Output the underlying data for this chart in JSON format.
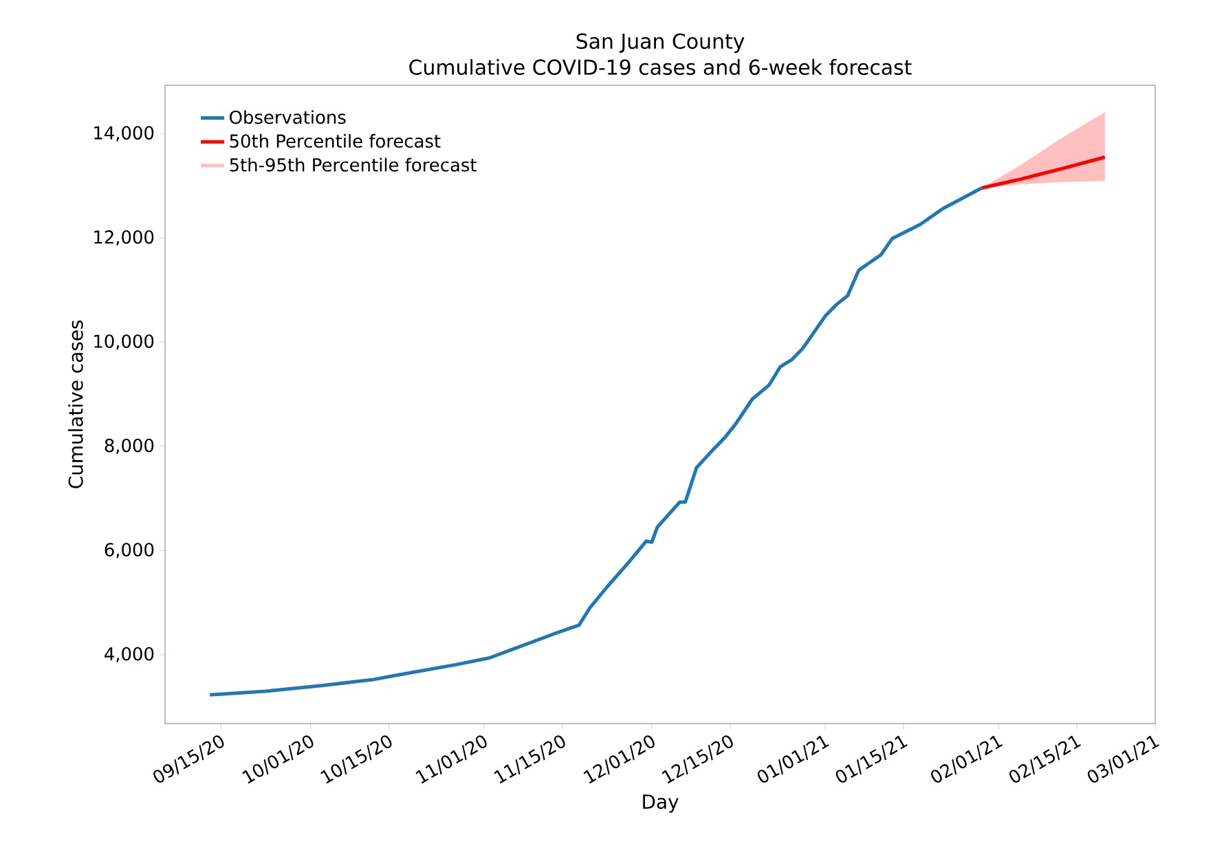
{
  "chart_data": {
    "type": "line",
    "title": "San Juan County",
    "subtitle": "Cumulative COVID-19 cases and 6-week forecast",
    "xlabel": "Day",
    "ylabel": "Cumulative cases",
    "xlim": [
      "2020-09-05",
      "2021-03-01"
    ],
    "ylim": [
      2680,
      14930
    ],
    "xticks": [
      {
        "value": "2020-09-15",
        "label": "09/15/20"
      },
      {
        "value": "2020-10-01",
        "label": "10/01/20"
      },
      {
        "value": "2020-10-15",
        "label": "10/15/20"
      },
      {
        "value": "2020-11-01",
        "label": "11/01/20"
      },
      {
        "value": "2020-11-15",
        "label": "11/15/20"
      },
      {
        "value": "2020-12-01",
        "label": "12/01/20"
      },
      {
        "value": "2020-12-15",
        "label": "12/15/20"
      },
      {
        "value": "2021-01-01",
        "label": "01/01/21"
      },
      {
        "value": "2021-01-15",
        "label": "01/15/21"
      },
      {
        "value": "2021-02-01",
        "label": "02/01/21"
      },
      {
        "value": "2021-02-15",
        "label": "02/15/21"
      },
      {
        "value": "2021-03-01",
        "label": "03/01/21"
      }
    ],
    "yticks": [
      {
        "value": 4000,
        "label": "4,000"
      },
      {
        "value": 6000,
        "label": "6,000"
      },
      {
        "value": 8000,
        "label": "8,000"
      },
      {
        "value": 10000,
        "label": "10,000"
      },
      {
        "value": 12000,
        "label": "12,000"
      },
      {
        "value": 14000,
        "label": "14,000"
      }
    ],
    "legend": "top left",
    "series": [
      {
        "name": "Observations",
        "color": "#1f77b4",
        "x": [
          "2020-09-13",
          "2020-09-23",
          "2020-10-03",
          "2020-10-12",
          "2020-10-16",
          "2020-10-27",
          "2020-11-02",
          "2020-11-07",
          "2020-11-14",
          "2020-11-18",
          "2020-11-20",
          "2020-11-23",
          "2020-11-27",
          "2020-11-30",
          "2020-12-01",
          "2020-12-02",
          "2020-12-06",
          "2020-12-07",
          "2020-12-09",
          "2020-12-12",
          "2020-12-14",
          "2020-12-16",
          "2020-12-19",
          "2020-12-22",
          "2020-12-24",
          "2020-12-26",
          "2020-12-28",
          "2021-01-01",
          "2021-01-03",
          "2021-01-05",
          "2021-01-07",
          "2021-01-11",
          "2021-01-13",
          "2021-01-18",
          "2021-01-22",
          "2021-01-29"
        ],
        "values": [
          3230,
          3300,
          3410,
          3520,
          3600,
          3810,
          3940,
          4140,
          4420,
          4570,
          4910,
          5300,
          5790,
          6180,
          6160,
          6450,
          6930,
          6930,
          7590,
          7940,
          8160,
          8430,
          8910,
          9180,
          9530,
          9660,
          9880,
          10500,
          10720,
          10890,
          11380,
          11680,
          11990,
          12260,
          12560,
          12960
        ]
      },
      {
        "name": "50th Percentile forecast",
        "color": "#ff0000",
        "x": [
          "2021-01-29",
          "2021-02-05",
          "2021-02-12",
          "2021-02-20"
        ],
        "values": [
          12960,
          13130,
          13320,
          13550
        ],
        "lower": [
          12960,
          13030,
          13070,
          13090
        ],
        "upper": [
          12960,
          13400,
          13900,
          14410
        ]
      }
    ],
    "annotations": [
      "5th-95th Percentile forecast"
    ]
  }
}
